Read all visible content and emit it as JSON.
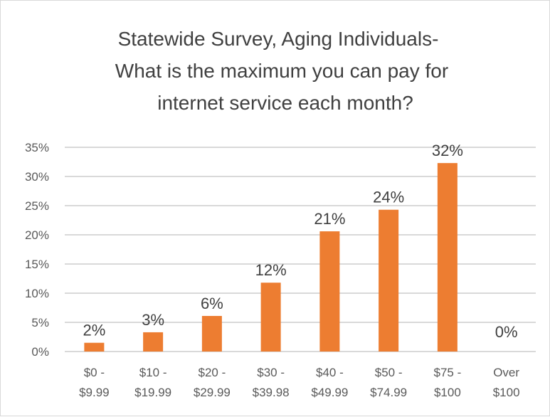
{
  "chart_data": {
    "type": "bar",
    "title_lines": [
      "Statewide Survey, Aging Individuals-",
      "What is the maximum you can pay for",
      "internet service each month?"
    ],
    "categories": [
      [
        "$0 -",
        "$9.99"
      ],
      [
        "$10 -",
        "$19.99"
      ],
      [
        "$20 -",
        "$29.99"
      ],
      [
        "$30 -",
        "$39.98"
      ],
      [
        "$40 -",
        "$49.99"
      ],
      [
        "$50 -",
        "$74.99"
      ],
      [
        "$75 -",
        "$100"
      ],
      [
        "Over",
        "$100"
      ]
    ],
    "values": [
      1.5,
      3.3,
      6.1,
      11.8,
      20.6,
      24.3,
      32.3,
      0
    ],
    "data_labels": [
      "2%",
      "3%",
      "6%",
      "12%",
      "21%",
      "24%",
      "32%",
      "0%"
    ],
    "yticks": [
      0,
      5,
      10,
      15,
      20,
      25,
      30,
      35
    ],
    "ytick_labels": [
      "0%",
      "5%",
      "10%",
      "15%",
      "20%",
      "25%",
      "30%",
      "35%"
    ],
    "ylim": [
      0,
      35
    ],
    "grid": true,
    "legend": "none",
    "bar_color": "#ed7d31",
    "grid_color": "#d9d9d9"
  }
}
